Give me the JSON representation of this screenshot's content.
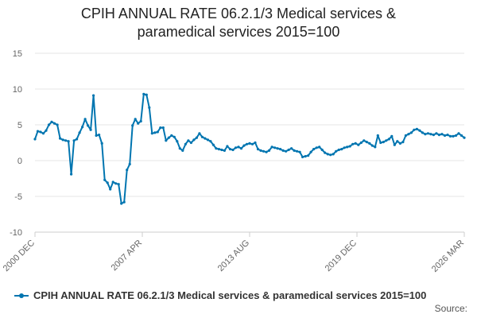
{
  "chart_data": {
    "type": "line",
    "title_lines": [
      "CPIH ANNUAL RATE 06.2.1/3 Medical services &",
      "paramedical services 2015=100"
    ],
    "ylim": [
      -10,
      15
    ],
    "yticks": [
      "15",
      "10",
      "5",
      "0",
      "-5",
      "-10"
    ],
    "xtick_labels": [
      "2000 DEC",
      "2007 APR",
      "2013 AUG",
      "2019 DEC",
      "2026 MAR"
    ],
    "series": [
      {
        "name": "CPIH ANNUAL RATE 06.2.1/3 Medical services & paramedical services 2015=100",
        "color": "#0075b0",
        "x_start": 0,
        "x_end": 1,
        "values": [
          3.0,
          4.1,
          4.0,
          3.8,
          4.2,
          5.0,
          5.4,
          5.2,
          5.0,
          3.1,
          2.9,
          2.8,
          2.7,
          -1.9,
          2.8,
          3.0,
          3.9,
          4.7,
          5.8,
          4.9,
          4.3,
          9.1,
          3.5,
          3.6,
          2.4,
          -2.7,
          -3.1,
          -4.0,
          -3.0,
          -3.2,
          -3.3,
          -6.0,
          -5.8,
          -1.3,
          -0.5,
          4.9,
          5.8,
          5.2,
          5.5,
          9.3,
          9.2,
          7.4,
          3.8,
          3.9,
          4.0,
          4.6,
          4.6,
          2.8,
          3.2,
          3.5,
          3.3,
          2.7,
          1.7,
          1.4,
          2.3,
          2.8,
          2.5,
          2.9,
          3.2,
          3.8,
          3.3,
          3.1,
          2.9,
          2.7,
          2.2,
          1.7,
          1.6,
          1.5,
          1.4,
          2.0,
          1.6,
          1.5,
          1.8,
          1.9,
          1.7,
          2.1,
          2.3,
          2.4,
          2.3,
          2.5,
          1.6,
          1.4,
          1.3,
          1.2,
          1.4,
          1.9,
          1.8,
          1.7,
          1.6,
          1.4,
          1.3,
          1.5,
          1.7,
          1.4,
          1.3,
          1.2,
          0.5,
          0.6,
          0.7,
          1.2,
          1.6,
          1.8,
          1.9,
          1.5,
          1.1,
          0.9,
          0.8,
          0.9,
          1.3,
          1.5,
          1.6,
          1.8,
          1.9,
          2.0,
          2.3,
          2.4,
          2.2,
          2.5,
          2.8,
          2.6,
          2.4,
          2.1,
          1.9,
          3.5,
          2.5,
          2.6,
          2.8,
          3.0,
          3.4,
          2.2,
          2.7,
          2.4,
          2.6,
          3.5,
          3.7,
          3.9,
          4.3,
          4.4,
          4.2,
          3.9,
          3.7,
          3.8,
          3.7,
          3.6,
          3.8,
          3.6,
          3.7,
          3.5,
          3.6,
          3.4,
          3.4,
          3.5,
          3.8,
          3.5,
          3.2
        ]
      }
    ]
  },
  "legend": {
    "label": "CPIH ANNUAL RATE 06.2.1/3 Medical services & paramedical services 2015=100"
  },
  "source": "Source:"
}
